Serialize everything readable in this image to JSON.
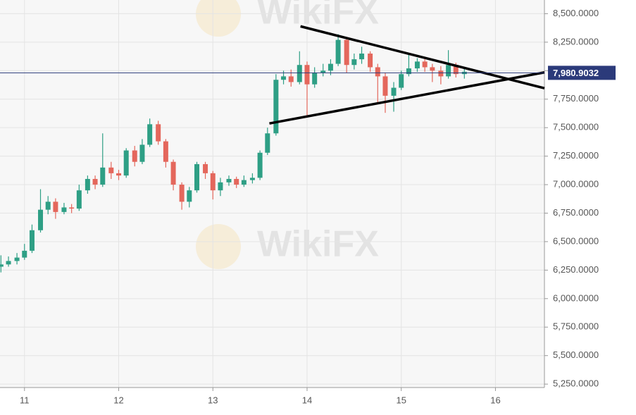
{
  "chart_data": {
    "type": "candlestick",
    "x": [
      10.75,
      10.83,
      10.92,
      11.0,
      11.08,
      11.17,
      11.25,
      11.33,
      11.42,
      11.5,
      11.58,
      11.67,
      11.75,
      11.83,
      11.92,
      12.0,
      12.08,
      12.17,
      12.25,
      12.33,
      12.42,
      12.5,
      12.58,
      12.67,
      12.75,
      12.83,
      12.92,
      13.0,
      13.08,
      13.17,
      13.25,
      13.33,
      13.42,
      13.5,
      13.58,
      13.67,
      13.75,
      13.83,
      13.92,
      14.0,
      14.08,
      14.17,
      14.25,
      14.33,
      14.42,
      14.5,
      14.58,
      14.67,
      14.75,
      14.83,
      14.92,
      15.0,
      15.08,
      15.17,
      15.25,
      15.33,
      15.42,
      15.5,
      15.58,
      15.67
    ],
    "open": [
      6280,
      6300,
      6330,
      6360,
      6420,
      6600,
      6780,
      6850,
      6760,
      6800,
      6790,
      6950,
      7050,
      7000,
      7150,
      7100,
      7080,
      7300,
      7200,
      7350,
      7530,
      7380,
      7200,
      7000,
      6850,
      6950,
      7180,
      7100,
      6950,
      7020,
      7050,
      7000,
      7040,
      7060,
      7280,
      7450,
      7920,
      7950,
      7900,
      8050,
      7880,
      7980,
      8000,
      8060,
      8270,
      8050,
      8100,
      8150,
      8030,
      7950,
      7780,
      7850,
      7970,
      8020,
      8080,
      8030,
      8000,
      7950,
      8050,
      7970
    ],
    "high": [
      6380,
      6370,
      6400,
      6480,
      6650,
      6960,
      6900,
      6880,
      6840,
      6830,
      7000,
      7080,
      7080,
      7450,
      7200,
      7130,
      7320,
      7340,
      7400,
      7580,
      7560,
      7400,
      7220,
      7020,
      6980,
      7200,
      7200,
      7120,
      7060,
      7080,
      7070,
      7080,
      7100,
      7300,
      7500,
      7970,
      8000,
      8010,
      8170,
      8080,
      8030,
      8060,
      8100,
      8320,
      8290,
      8150,
      8210,
      8170,
      8060,
      7980,
      7900,
      8000,
      8150,
      8110,
      8100,
      8060,
      8040,
      8180,
      8070,
      8030
    ],
    "low": [
      6230,
      6280,
      6300,
      6340,
      6400,
      6580,
      6740,
      6700,
      6740,
      6750,
      6770,
      6920,
      6960,
      6980,
      7050,
      7040,
      7060,
      7160,
      7180,
      7330,
      7350,
      7150,
      6950,
      6780,
      6800,
      6930,
      7050,
      6870,
      6900,
      6990,
      6970,
      6980,
      7010,
      7040,
      7260,
      7430,
      7880,
      7860,
      7880,
      7600,
      7850,
      7950,
      7960,
      8040,
      7980,
      8010,
      8060,
      7990,
      7720,
      7630,
      7640,
      7830,
      7950,
      7990,
      7990,
      7900,
      7880,
      7930,
      7940,
      7930
    ],
    "close": [
      6300,
      6330,
      6360,
      6420,
      6600,
      6780,
      6850,
      6760,
      6800,
      6790,
      6950,
      7050,
      7000,
      7150,
      7100,
      7080,
      7300,
      7200,
      7350,
      7530,
      7380,
      7200,
      7000,
      6850,
      6950,
      7180,
      7100,
      6950,
      7020,
      7050,
      7000,
      7040,
      7060,
      7280,
      7450,
      7920,
      7950,
      7900,
      8050,
      7880,
      7980,
      8000,
      8060,
      8270,
      8050,
      8100,
      8150,
      8030,
      7950,
      7780,
      7850,
      7970,
      8020,
      8080,
      8030,
      8000,
      7950,
      8050,
      7970,
      7990
    ],
    "up_color": "#2e9f85",
    "down_color": "#e4675c",
    "xlim": [
      10.74,
      16.52
    ],
    "xticks": [
      11,
      12,
      13,
      14,
      15,
      16
    ],
    "ylim": [
      5220,
      8620
    ],
    "yticks": [
      {
        "value": 5250,
        "label": "5,250.0000"
      },
      {
        "value": 5500,
        "label": "5,500.0000"
      },
      {
        "value": 5750,
        "label": "5,750.0000"
      },
      {
        "value": 6000,
        "label": "6,000.0000"
      },
      {
        "value": 6250,
        "label": "6,250.0000"
      },
      {
        "value": 6500,
        "label": "6,500.0000"
      },
      {
        "value": 6750,
        "label": "6,750.0000"
      },
      {
        "value": 7000,
        "label": "7,000.0000"
      },
      {
        "value": 7250,
        "label": "7,250.0000"
      },
      {
        "value": 7500,
        "label": "7,500.0000"
      },
      {
        "value": 7750,
        "label": "7,750.0000"
      },
      {
        "value": 8000,
        "label": "8,000.0000"
      },
      {
        "value": 8250,
        "label": "8,250.0000"
      },
      {
        "value": 8500,
        "label": "8,500.0000"
      }
    ],
    "grid": true,
    "price_line": {
      "value": 7980.9032,
      "label": "7,980.9032",
      "color": "#2b3a7a"
    },
    "trendlines": [
      {
        "x": [
          13.93,
          16.52
        ],
        "y": [
          8389,
          7846
        ]
      },
      {
        "x": [
          13.6,
          16.52
        ],
        "y": [
          7537,
          7985
        ]
      }
    ],
    "watermark": "WikiFX"
  }
}
